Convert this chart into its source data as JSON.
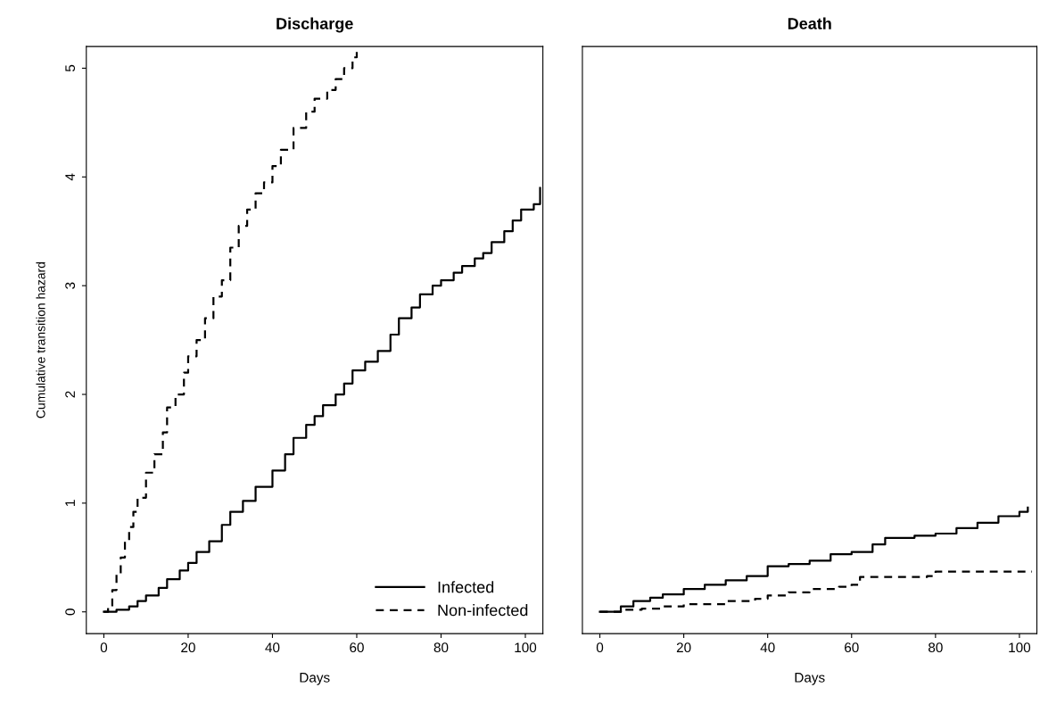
{
  "chart_data": [
    {
      "type": "step",
      "title": "Discharge",
      "xlabel": "Days",
      "ylabel": "Cumulative transition hazard",
      "xlim": [
        -4.16,
        104.16
      ],
      "ylim": [
        -0.2,
        5.2
      ],
      "xticks": [
        0,
        20,
        40,
        60,
        80,
        100
      ],
      "yticks": [
        0,
        1,
        2,
        3,
        4,
        5
      ],
      "grid": false,
      "legend": "bottom right",
      "marker": "none",
      "series": [
        {
          "name": "Infected",
          "color": "#000000",
          "line_style": "solid",
          "x": [
            0,
            3,
            6,
            8,
            10,
            13,
            15,
            18,
            20,
            22,
            25,
            28,
            30,
            33,
            36,
            40,
            43,
            45,
            48,
            50,
            52,
            55,
            57,
            59,
            62,
            65,
            68,
            70,
            73,
            75,
            78,
            80,
            83,
            85,
            88,
            90,
            92,
            95,
            97,
            99,
            102,
            103.5
          ],
          "values": [
            0,
            0.02,
            0.05,
            0.1,
            0.15,
            0.22,
            0.3,
            0.38,
            0.45,
            0.55,
            0.65,
            0.8,
            0.92,
            1.02,
            1.15,
            1.3,
            1.45,
            1.6,
            1.72,
            1.8,
            1.9,
            2.0,
            2.1,
            2.22,
            2.3,
            2.4,
            2.55,
            2.7,
            2.8,
            2.92,
            3.0,
            3.05,
            3.12,
            3.18,
            3.25,
            3.3,
            3.4,
            3.5,
            3.6,
            3.7,
            3.75,
            3.9
          ]
        },
        {
          "name": "Non-infected",
          "color": "#000000",
          "line_style": "dashed",
          "x": [
            0,
            1,
            2,
            3,
            4,
            5,
            6,
            7,
            8,
            10,
            12,
            14,
            15,
            17,
            19,
            20,
            22,
            24,
            26,
            28,
            30,
            32,
            34,
            36,
            38,
            40,
            42,
            45,
            48,
            50,
            53,
            55,
            57,
            59,
            60
          ],
          "values": [
            0,
            0.05,
            0.2,
            0.35,
            0.5,
            0.65,
            0.78,
            0.92,
            1.05,
            1.28,
            1.45,
            1.65,
            1.88,
            2.0,
            2.2,
            2.35,
            2.5,
            2.7,
            2.9,
            3.05,
            3.35,
            3.55,
            3.7,
            3.85,
            3.95,
            4.1,
            4.25,
            4.45,
            4.6,
            4.72,
            4.8,
            4.9,
            5.0,
            5.1,
            5.18
          ]
        }
      ]
    },
    {
      "type": "step",
      "title": "Death",
      "xlabel": "Days",
      "xlim": [
        -4.16,
        104.16
      ],
      "ylim": [
        -0.2,
        5.2
      ],
      "xticks": [
        0,
        20,
        40,
        60,
        80,
        100
      ],
      "yticks": [
        0,
        1,
        2,
        3,
        4,
        5
      ],
      "tick_labels": "x",
      "grid": false,
      "marker": "none",
      "series": [
        {
          "color": "#000000",
          "line_style": "solid",
          "x": [
            0,
            5,
            8,
            12,
            15,
            20,
            25,
            30,
            35,
            40,
            45,
            50,
            55,
            60,
            65,
            68,
            75,
            80,
            85,
            90,
            95,
            100,
            102
          ],
          "values": [
            0,
            0.05,
            0.1,
            0.13,
            0.16,
            0.21,
            0.25,
            0.29,
            0.33,
            0.42,
            0.44,
            0.47,
            0.53,
            0.55,
            0.62,
            0.68,
            0.7,
            0.72,
            0.77,
            0.82,
            0.88,
            0.92,
            0.96
          ]
        },
        {
          "color": "#000000",
          "line_style": "dashed",
          "x": [
            0,
            5,
            10,
            15,
            20,
            30,
            37,
            40,
            45,
            50,
            57,
            60,
            62,
            78,
            80,
            103
          ],
          "values": [
            0,
            0.02,
            0.03,
            0.05,
            0.07,
            0.1,
            0.12,
            0.15,
            0.18,
            0.21,
            0.23,
            0.25,
            0.32,
            0.33,
            0.37,
            0.37
          ]
        }
      ]
    }
  ]
}
